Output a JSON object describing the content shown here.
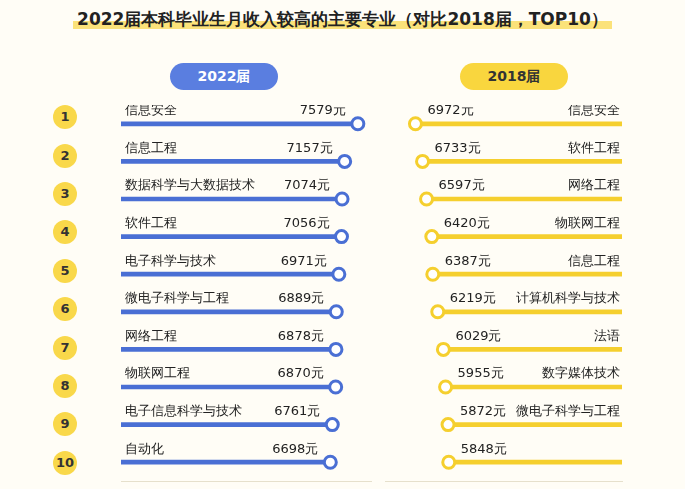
{
  "title": "2022届本科毕业生月收入较高的主要专业（对比2018届，TOP10）",
  "ranks": [
    1,
    2,
    3,
    4,
    5,
    6,
    7,
    8,
    9,
    10
  ],
  "chart_data": [
    {
      "type": "bar",
      "title": "2022届",
      "orientation": "horizontal",
      "categories": [
        "信息安全",
        "信息工程",
        "数据科学与大数据技术",
        "软件工程",
        "电子科学与技术",
        "微电子科学与工程",
        "网络工程",
        "物联网工程",
        "电子信息科学与技术",
        "自动化"
      ],
      "values": [
        7579,
        7157,
        7074,
        7056,
        6971,
        6889,
        6878,
        6870,
        6761,
        6698
      ],
      "value_labels": [
        "7579元",
        "7157元",
        "7074元",
        "7056元",
        "6971元",
        "6889元",
        "6878元",
        "6870元",
        "6761元",
        "6698元"
      ],
      "data_labels": true,
      "color": "#4a6fd4",
      "xlim": [
        0,
        8000
      ],
      "tick_labels": false,
      "grid": false
    },
    {
      "type": "bar",
      "title": "2018届",
      "orientation": "horizontal",
      "categories": [
        "信息安全",
        "软件工程",
        "网络工程",
        "物联网工程",
        "信息工程",
        "计算机科学与技术",
        "法语",
        "数字媒体技术",
        "微电子科学与工程",
        null
      ],
      "values": [
        6972,
        6733,
        6597,
        6420,
        6387,
        6219,
        6029,
        5955,
        5872,
        5848
      ],
      "value_labels": [
        "6972元",
        "6733元",
        "6597元",
        "6420元",
        "6387元",
        "6219元",
        "6029元",
        "5955元",
        "5872元",
        "5848元"
      ],
      "data_labels": true,
      "color": "#f5cf2e",
      "xlim": [
        0,
        8000
      ],
      "tick_labels": false,
      "grid": false
    }
  ]
}
